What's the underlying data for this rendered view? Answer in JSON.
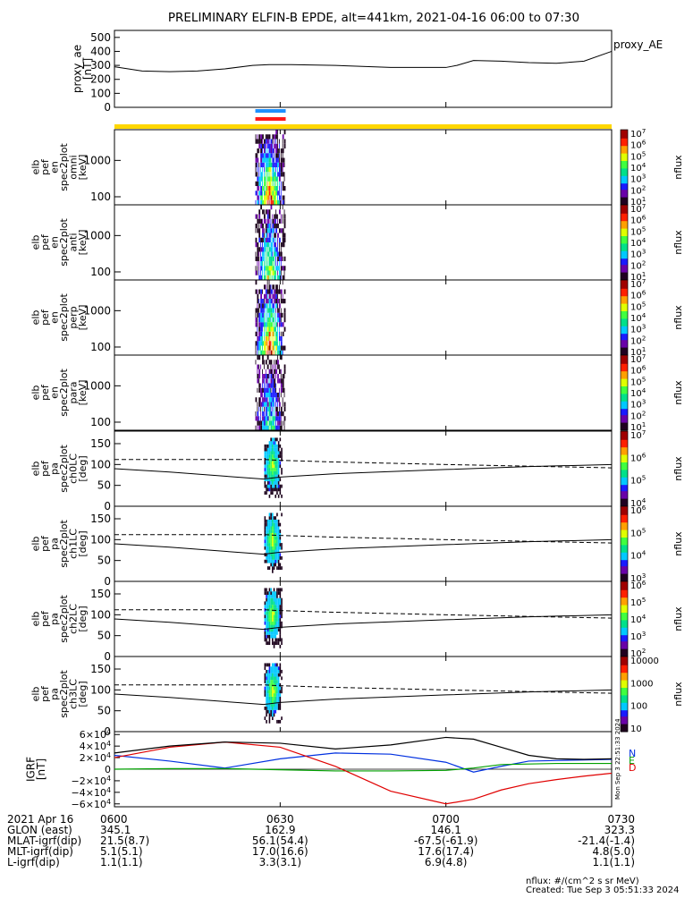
{
  "title": "PRELIMINARY ELFIN-B EPDE, alt=441km, 2021-04-16 06:00 to 07:30",
  "ae_panel": {
    "ylabel_lines": [
      "proxy_ae",
      "[nT]"
    ],
    "legend": "proxy_AE",
    "yticks": [
      "500",
      "400",
      "300",
      "200",
      "100",
      "0"
    ]
  },
  "colorbars": {
    "flux_label": "nflux",
    "e_ticks": [
      "10^7",
      "10^6",
      "10^5",
      "10^4",
      "10^3",
      "10^2",
      "10^1"
    ],
    "pa0_ticks": [
      "10^7",
      "10^6",
      "10^5",
      "10^4"
    ],
    "pa1_ticks": [
      "10^6",
      "10^5",
      "10^4",
      "10^3"
    ],
    "pa2_ticks": [
      "10^6",
      "10^5",
      "10^4",
      "10^3",
      "10^2"
    ],
    "pa3_ticks": [
      "10000",
      "1000",
      "100",
      "10"
    ]
  },
  "energy_panels": [
    {
      "ylabel_lines": [
        "elb",
        "pef",
        "en",
        "spec2plot",
        "omni",
        "[keV]"
      ],
      "yticks": [
        "1000",
        "100"
      ]
    },
    {
      "ylabel_lines": [
        "elb",
        "pef",
        "en",
        "spec2plot",
        "anti",
        "[keV]"
      ],
      "yticks": [
        "1000",
        "100"
      ]
    },
    {
      "ylabel_lines": [
        "elb",
        "pef",
        "en",
        "spec2plot",
        "perp",
        "[keV]"
      ],
      "yticks": [
        "1000",
        "100"
      ]
    },
    {
      "ylabel_lines": [
        "elb",
        "pef",
        "en",
        "spec2plot",
        "para",
        "[keV]"
      ],
      "yticks": [
        "1000",
        "100"
      ]
    }
  ],
  "pa_panels": [
    {
      "ylabel_lines": [
        "elb",
        "pef",
        "pa",
        "spec2plot",
        "ch0LC",
        "[deg]"
      ],
      "yticks": [
        "150",
        "100",
        "50",
        "0"
      ]
    },
    {
      "ylabel_lines": [
        "elb",
        "pef",
        "pa",
        "spec2plot",
        "ch1LC",
        "[deg]"
      ],
      "yticks": [
        "150",
        "100",
        "50",
        "0"
      ]
    },
    {
      "ylabel_lines": [
        "elb",
        "pef",
        "pa",
        "spec2plot",
        "ch2LC",
        "[deg]"
      ],
      "yticks": [
        "150",
        "100",
        "50",
        "0"
      ]
    },
    {
      "ylabel_lines": [
        "elb",
        "pef",
        "pa",
        "spec2plot",
        "ch3LC",
        "[deg]"
      ],
      "yticks": [
        "150",
        "100",
        "50",
        "0"
      ]
    }
  ],
  "igrf_panel": {
    "ylabel_lines": [
      "IGRF",
      "[nT]"
    ],
    "yticks": [
      "6×10^4",
      "4×10^4",
      "2×10^4",
      "0",
      "−2×10^4",
      "−4×10^4",
      "−6×10^4"
    ],
    "legend": [
      "N",
      "E",
      "D"
    ],
    "stamp": "Mon Sep  3 22:51:33 2024"
  },
  "footer": {
    "rows": [
      {
        "label": "2021 Apr 16",
        "values": [
          "0600",
          "0630",
          "0700",
          "0730"
        ]
      },
      {
        "label": "GLON (east)",
        "values": [
          "345.1",
          "162.9",
          "146.1",
          "323.3"
        ]
      },
      {
        "label": "MLAT-igrf(dip)",
        "values": [
          "21.5(8.7)",
          "56.1(54.4)",
          "-67.5(-61.9)",
          "-21.4(-1.4)"
        ]
      },
      {
        "label": "MLT-igrf(dip)",
        "values": [
          "5.1(5.1)",
          "17.0(16.6)",
          "17.6(17.4)",
          "4.8(5.0)"
        ]
      },
      {
        "label": "L-igrf(dip)",
        "values": [
          "1.1(1.1)",
          "3.3(3.1)",
          "6.9(4.8)",
          "1.1(1.1)"
        ]
      }
    ],
    "units_note": "nflux: #/(cm^2 s sr MeV)",
    "created": "Created: Tue Sep  3 05:51:33 2024"
  },
  "chart_data": [
    {
      "type": "line",
      "name": "proxy_ae",
      "x_minutes": [
        0,
        5,
        10,
        15,
        20,
        25,
        28,
        32,
        40,
        50,
        60,
        62,
        65,
        70,
        75,
        80,
        85,
        90
      ],
      "values": [
        290,
        260,
        255,
        260,
        275,
        300,
        305,
        305,
        300,
        285,
        285,
        300,
        335,
        330,
        320,
        315,
        330,
        400
      ],
      "ylim": [
        0,
        550
      ]
    },
    {
      "type": "bar",
      "name": "orbit_indicators",
      "segments": [
        {
          "color": "#1e90ff",
          "start_min": 25.5,
          "end_min": 31.0,
          "row": "top"
        },
        {
          "color": "#ff1a1a",
          "start_min": 25.5,
          "end_min": 31.0,
          "row": "bottom"
        },
        {
          "color": "#ffd700",
          "start_min": 0,
          "end_min": 90,
          "row": "band"
        }
      ]
    },
    {
      "type": "heatmap",
      "name": "energy_spectrograms",
      "x_window_min": [
        25.5,
        31.0
      ],
      "y_energy_keV": [
        60,
        7000
      ],
      "peak_log_flux": [
        7.0,
        5.0,
        7.0,
        3.5
      ],
      "colorscale": [
        "#200020",
        "#6a00a8",
        "#1a1aff",
        "#00c8ff",
        "#00e08a",
        "#40ff40",
        "#e0ff00",
        "#ffa000",
        "#ff2000",
        "#a00000"
      ]
    },
    {
      "type": "line",
      "name": "pa_loss_cone",
      "x_minutes": [
        0,
        10,
        20,
        27,
        30,
        40,
        60,
        75,
        90
      ],
      "solid_deg": [
        90,
        82,
        72,
        65,
        70,
        78,
        88,
        95,
        100
      ],
      "dashed_deg": [
        112,
        112,
        112,
        112,
        110,
        106,
        100,
        96,
        92
      ],
      "ylim": [
        0,
        180
      ]
    },
    {
      "type": "line",
      "name": "igrf",
      "x_minutes": [
        0,
        10,
        20,
        30,
        40,
        50,
        60,
        65,
        70,
        75,
        80,
        85,
        90
      ],
      "series": [
        {
          "name": "N",
          "color": "#0030e0",
          "values": [
            24000,
            14000,
            2000,
            18000,
            28000,
            26000,
            12000,
            -5000,
            5000,
            14000,
            15000,
            16000,
            17000
          ]
        },
        {
          "name": "E",
          "color": "#00a000",
          "values": [
            0,
            1000,
            1000,
            -1000,
            -3000,
            -3000,
            -2000,
            2000,
            8000,
            9000,
            10000,
            10000,
            10000
          ]
        },
        {
          "name": "D",
          "color": "#e00000",
          "values": [
            20000,
            38000,
            47000,
            38000,
            5000,
            -38000,
            -60000,
            -52000,
            -36000,
            -25000,
            -18000,
            -12000,
            -7000
          ]
        },
        {
          "name": "F",
          "color": "#000000",
          "values": [
            28000,
            40000,
            47000,
            45000,
            35000,
            42000,
            55000,
            52000,
            38000,
            24000,
            18000,
            17000,
            18000
          ]
        }
      ],
      "ylim": [
        -65000,
        65000
      ]
    }
  ]
}
